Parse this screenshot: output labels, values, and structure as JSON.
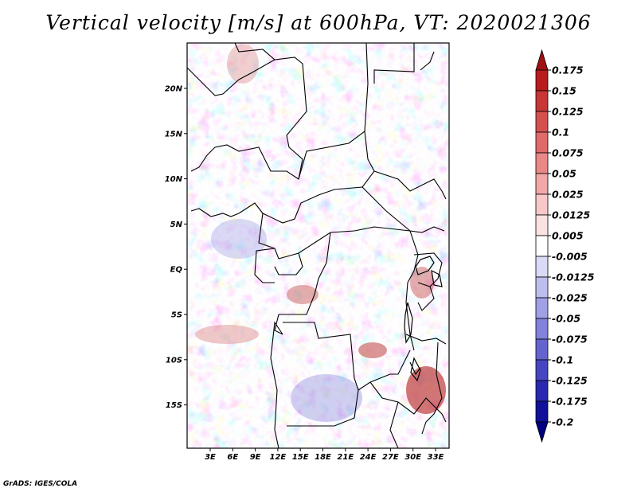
{
  "title": "Vertical velocity [m/s] at 600hPa, VT: 2020021306",
  "credit": "GrADS: IGES/COLA",
  "map": {
    "lat_labels": [
      "20N",
      "15N",
      "10N",
      "5N",
      "EQ",
      "5S",
      "10S",
      "15S"
    ],
    "lon_labels": [
      "3E",
      "6E",
      "9E",
      "12E",
      "15E",
      "18E",
      "21E",
      "24E",
      "27E",
      "30E",
      "33E"
    ],
    "border_color": "#000000"
  },
  "colorbar": {
    "labels": [
      "0.175",
      "0.15",
      "0.125",
      "0.1",
      "0.075",
      "0.05",
      "0.025",
      "0.0125",
      "0.005",
      "-0.005",
      "-0.0125",
      "-0.025",
      "-0.05",
      "-0.075",
      "-0.1",
      "-0.125",
      "-0.175",
      "-0.2"
    ],
    "colors": [
      "#a01010",
      "#b81c1c",
      "#c83636",
      "#d65050",
      "#e06a6a",
      "#ea8888",
      "#f2a8a8",
      "#f8c8c8",
      "#fbe2e2",
      "#ffffff",
      "#dadaf6",
      "#bebeee",
      "#a0a0e6",
      "#8282dc",
      "#6464d0",
      "#4646c2",
      "#2828b0",
      "#10109a",
      "#000080"
    ],
    "arrow_top_color": "#a01010",
    "arrow_bottom_color": "#000080"
  }
}
